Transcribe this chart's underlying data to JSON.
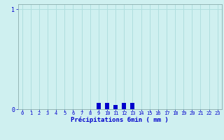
{
  "title": "",
  "xlabel": "Précipitations 6min ( mm )",
  "ylabel": "",
  "background_color": "#cff0f0",
  "bar_color": "#0000cc",
  "grid_color": "#b0dede",
  "axis_color": "#8aabab",
  "text_color": "#0000cc",
  "xlim": [
    -0.5,
    23.5
  ],
  "ylim": [
    0,
    1.05
  ],
  "yticks": [
    0,
    1
  ],
  "xticks": [
    0,
    1,
    2,
    3,
    4,
    5,
    6,
    7,
    8,
    9,
    10,
    11,
    12,
    13,
    14,
    15,
    16,
    17,
    18,
    19,
    20,
    21,
    22,
    23
  ],
  "xtick_labels": [
    "0",
    "1",
    "2",
    "3",
    "4",
    "5",
    "6",
    "7",
    "8",
    "9",
    "10",
    "11",
    "12",
    "13",
    "14",
    "15",
    "16",
    "17",
    "18",
    "19",
    "20",
    "21",
    "22",
    "23"
  ],
  "hours": [
    9,
    10,
    10,
    11,
    12,
    13,
    13
  ],
  "values": [
    0.06,
    0.06,
    0.06,
    0.04,
    0.06,
    0.06,
    0.06
  ],
  "bar_width": 0.5,
  "figsize": [
    3.2,
    2.0
  ],
  "dpi": 100
}
